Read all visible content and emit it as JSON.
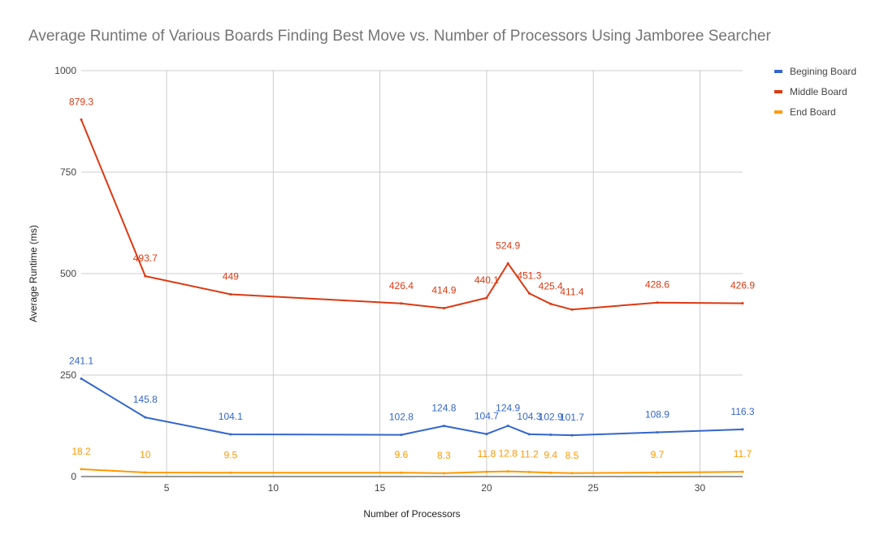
{
  "chart_data": {
    "type": "line",
    "title": "Average Runtime of Various Boards Finding Best Move vs. Number of Processors Using Jamboree Searcher",
    "xlabel": "Number of Processors",
    "ylabel": "Average Runtime (ms)",
    "xlim": [
      1,
      32
    ],
    "ylim": [
      0,
      1000
    ],
    "x_ticks": [
      5,
      10,
      15,
      20,
      25,
      30
    ],
    "y_ticks": [
      0,
      250,
      500,
      750,
      1000
    ],
    "grid": true,
    "legend_position": "right",
    "x": [
      1,
      4,
      8,
      16,
      18,
      20,
      21,
      22,
      23,
      24,
      28,
      32
    ],
    "series": [
      {
        "name": "Begining Board",
        "color": "#3366cc",
        "values": [
          241.1,
          145.8,
          104.1,
          102.8,
          124.8,
          104.7,
          124.9,
          104.3,
          102.9,
          101.7,
          108.9,
          116.3
        ],
        "labels": [
          "241.1",
          "145.8",
          "104.1",
          "102.8",
          "124.8",
          "104.7",
          "124.9",
          "104.3",
          "102.9",
          "101.7",
          "108.9",
          "116.3"
        ]
      },
      {
        "name": "Middle Board",
        "color": "#dc3912",
        "values": [
          879.3,
          493.7,
          449,
          426.4,
          414.9,
          440.1,
          524.9,
          451.3,
          425.4,
          411.4,
          428.6,
          426.9
        ],
        "labels": [
          "879.3",
          "493.7",
          "449",
          "426.4",
          "414.9",
          "440.1",
          "524.9",
          "451.3",
          "425.4",
          "411.4",
          "428.6",
          "426.9"
        ]
      },
      {
        "name": "End Board",
        "color": "#ff9900",
        "values": [
          18.2,
          10,
          9.5,
          9.6,
          8.3,
          11.8,
          12.8,
          11.2,
          9.4,
          8.5,
          9.7,
          11.7
        ],
        "labels": [
          "18.2",
          "10",
          "9.5",
          "9.6",
          "8.3",
          "11.8",
          "12.8",
          "11.2",
          "9.4",
          "8.5",
          "9.7",
          "11.7"
        ]
      }
    ]
  }
}
